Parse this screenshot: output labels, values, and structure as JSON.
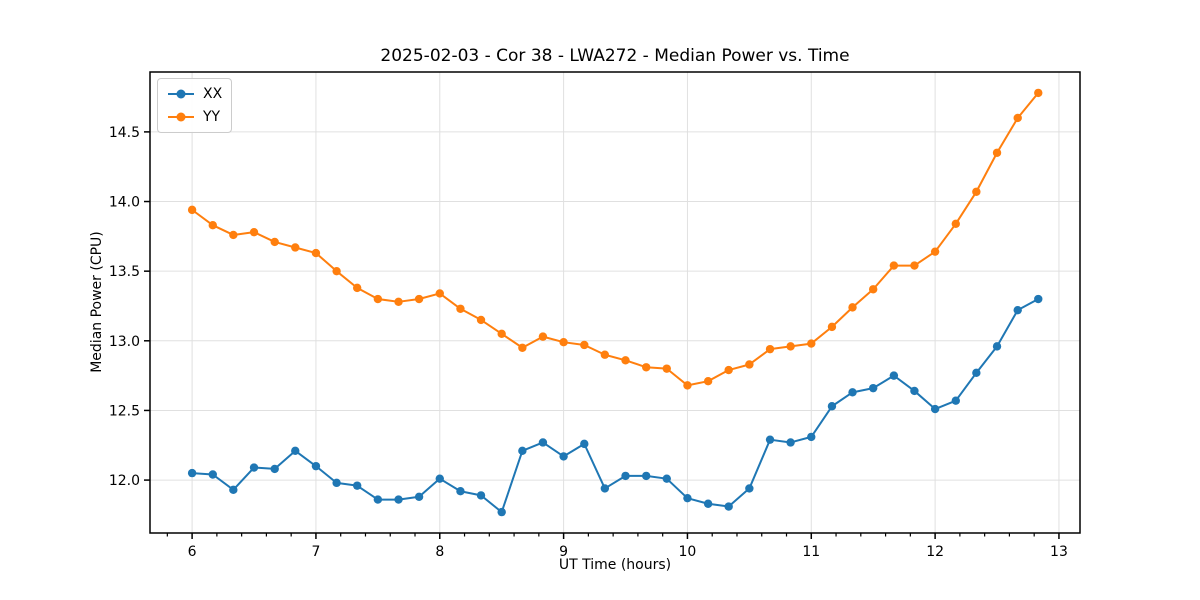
{
  "chart_data": {
    "type": "line",
    "title": "2025-02-03 - Cor 38 - LWA272 - Median Power vs. Time",
    "xlabel": "UT Time (hours)",
    "ylabel": "Median Power (CPU)",
    "xlim": [
      5.66,
      13.17
    ],
    "ylim": [
      11.62,
      14.93
    ],
    "xticks": {
      "values": [
        6,
        7,
        8,
        9,
        10,
        11,
        12,
        13
      ],
      "labels": [
        "6",
        "7",
        "8",
        "9",
        "10",
        "11",
        "12",
        "13"
      ],
      "minor_step": 0.2
    },
    "yticks": {
      "values": [
        12.0,
        12.5,
        13.0,
        13.5,
        14.0,
        14.5
      ],
      "labels": [
        "12.0",
        "12.5",
        "13.0",
        "13.5",
        "14.0",
        "14.5"
      ]
    },
    "grid": "major",
    "legend_position": "upper-left",
    "x": [
      6.0,
      6.167,
      6.333,
      6.5,
      6.667,
      6.833,
      7.0,
      7.167,
      7.333,
      7.5,
      7.667,
      7.833,
      8.0,
      8.167,
      8.333,
      8.5,
      8.667,
      8.833,
      9.0,
      9.167,
      9.333,
      9.5,
      9.667,
      9.833,
      10.0,
      10.167,
      10.333,
      10.5,
      10.667,
      10.833,
      11.0,
      11.167,
      11.333,
      11.5,
      11.667,
      11.833,
      12.0,
      12.167,
      12.333,
      12.5,
      12.667,
      12.833
    ],
    "series": [
      {
        "name": "XX",
        "color": "#1f77b4",
        "values": [
          12.05,
          12.04,
          11.93,
          12.09,
          12.08,
          12.21,
          12.1,
          11.98,
          11.96,
          11.86,
          11.86,
          11.88,
          12.01,
          11.92,
          11.89,
          11.77,
          12.21,
          12.27,
          12.17,
          12.26,
          11.94,
          12.03,
          12.03,
          12.01,
          11.87,
          11.83,
          11.81,
          11.94,
          12.29,
          12.27,
          12.31,
          12.53,
          12.63,
          12.66,
          12.75,
          12.64,
          12.51,
          12.57,
          12.77,
          12.96,
          13.22,
          13.3
        ]
      },
      {
        "name": "YY",
        "color": "#ff7f0e",
        "values": [
          13.94,
          13.83,
          13.76,
          13.78,
          13.71,
          13.67,
          13.63,
          13.5,
          13.38,
          13.3,
          13.28,
          13.3,
          13.34,
          13.23,
          13.15,
          13.05,
          12.95,
          13.03,
          12.99,
          12.97,
          12.9,
          12.86,
          12.81,
          12.8,
          12.68,
          12.71,
          12.79,
          12.83,
          12.94,
          12.96,
          12.98,
          13.1,
          13.24,
          13.37,
          13.54,
          13.54,
          13.64,
          13.84,
          14.07,
          14.35,
          14.6,
          14.78
        ]
      }
    ],
    "colors": {
      "grid": "#e0e0e0",
      "spine": "#000000",
      "tick_text": "#000000"
    }
  }
}
